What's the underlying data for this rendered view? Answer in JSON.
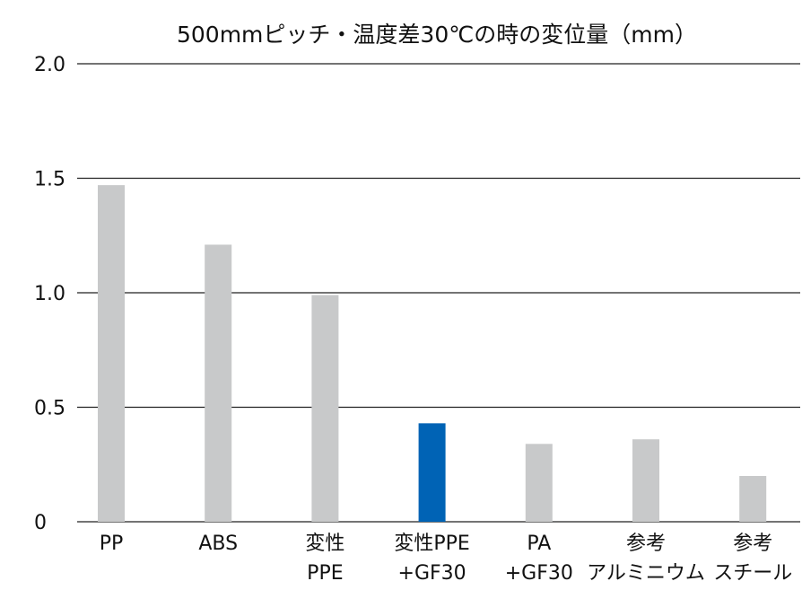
{
  "chart_data": {
    "type": "bar",
    "title": "500mmピッチ・温度差30℃の時の変位量（mm）",
    "xlabel": "",
    "ylabel": "",
    "ylim": [
      0,
      2.0
    ],
    "yticks": [
      0,
      0.5,
      1.0,
      1.5,
      2.0
    ],
    "ytick_labels": [
      "0",
      "0.5",
      "1.0",
      "1.5",
      "2.0"
    ],
    "grid": true,
    "categories": [
      [
        "PP"
      ],
      [
        "ABS"
      ],
      [
        "変性",
        "PPE"
      ],
      [
        "変性PPE",
        "+GF30"
      ],
      [
        "PA",
        "+GF30"
      ],
      [
        "参考",
        "アルミニウム"
      ],
      [
        "参考",
        "スチール"
      ]
    ],
    "values": [
      1.47,
      1.21,
      0.99,
      0.43,
      0.34,
      0.36,
      0.2
    ],
    "colors": [
      "#c8c9ca",
      "#c8c9ca",
      "#c8c9ca",
      "#0063b5",
      "#c8c9ca",
      "#c8c9ca",
      "#c8c9ca"
    ],
    "highlight_color": "#0063b5",
    "default_color": "#c8c9ca",
    "grid_color": "#222222"
  }
}
